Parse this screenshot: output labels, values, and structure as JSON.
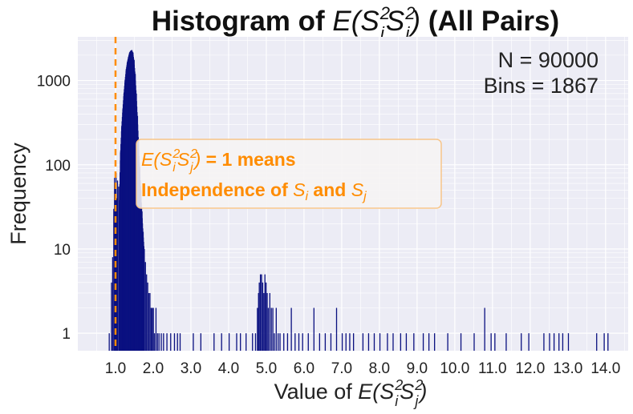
{
  "chart_data": {
    "type": "bar",
    "title_prefix": "Histogram of ",
    "title_suffix": " (All Pairs)",
    "expression": {
      "open": "E(",
      "s": "S",
      "i": "i",
      "j": "j",
      "exp": "2",
      "close": ")"
    },
    "xlabel_prefix": "Value of ",
    "ylabel": "Frequency",
    "y_scale": "log",
    "xlim": [
      0.0,
      14.6
    ],
    "ylim": [
      0.62,
      3300
    ],
    "x_ticks": [
      1.0,
      2.0,
      3.0,
      4.0,
      5.0,
      6.0,
      7.0,
      8.0,
      9.0,
      10.0,
      11.0,
      12.0,
      13.0,
      14.0
    ],
    "x_tick_labels": [
      "1.0",
      "2.0",
      "3.0",
      "4.0",
      "5.0",
      "6.0",
      "7.0",
      "8.0",
      "9.0",
      "10.0",
      "11.0",
      "12.0",
      "13.0",
      "14.0"
    ],
    "y_ticks": [
      1,
      10,
      100,
      1000
    ],
    "y_tick_labels": [
      "1",
      "10",
      "100",
      "1000"
    ],
    "grid": true,
    "bar_color": "#0a1080",
    "reference_line": {
      "x": 1.0,
      "color": "#ff8c00",
      "style": "dashed"
    },
    "annotation": {
      "line1_suffix": " = 1 means",
      "line2_prefix": "Independence of ",
      "line2_middle": " and ",
      "color": "#ff8c00"
    },
    "stats": {
      "n": "N = 90000",
      "bins": "Bins = 1867"
    },
    "peak": {
      "x": 1.42,
      "value": 2300
    },
    "bins": {
      "bin_width": 0.0075,
      "bars": [
        [
          0.82,
          1
        ],
        [
          0.88,
          4
        ],
        [
          0.91,
          8
        ],
        [
          0.94,
          30
        ],
        [
          0.96,
          70
        ],
        [
          0.97,
          45
        ],
        [
          0.99,
          60
        ],
        [
          1.0,
          80
        ],
        [
          1.02,
          40
        ],
        [
          1.04,
          65
        ],
        [
          1.07,
          55
        ],
        [
          1.09,
          38
        ],
        [
          1.12,
          140
        ],
        [
          1.15,
          280
        ],
        [
          1.18,
          450
        ],
        [
          1.21,
          700
        ],
        [
          1.24,
          1000
        ],
        [
          1.27,
          1350
        ],
        [
          1.3,
          1650
        ],
        [
          1.33,
          1900
        ],
        [
          1.36,
          2150
        ],
        [
          1.39,
          2250
        ],
        [
          1.42,
          2300
        ],
        [
          1.45,
          2150
        ],
        [
          1.48,
          1750
        ],
        [
          1.51,
          1200
        ],
        [
          1.54,
          700
        ],
        [
          1.57,
          380
        ],
        [
          1.6,
          190
        ],
        [
          1.63,
          95
        ],
        [
          1.66,
          50
        ],
        [
          1.69,
          28
        ],
        [
          1.72,
          16
        ],
        [
          1.75,
          10
        ],
        [
          1.78,
          7
        ],
        [
          1.81,
          5
        ],
        [
          1.84,
          4
        ],
        [
          1.87,
          3
        ],
        [
          1.9,
          3
        ],
        [
          1.93,
          2
        ],
        [
          1.96,
          2
        ],
        [
          1.99,
          2
        ],
        [
          2.02,
          1
        ],
        [
          2.06,
          2
        ],
        [
          2.1,
          1
        ],
        [
          2.14,
          1
        ],
        [
          2.2,
          1
        ],
        [
          2.26,
          1
        ],
        [
          2.35,
          1
        ],
        [
          2.45,
          1
        ],
        [
          2.55,
          1
        ],
        [
          2.63,
          1
        ],
        [
          2.7,
          1
        ],
        [
          3.05,
          1
        ],
        [
          3.25,
          1
        ],
        [
          3.6,
          1
        ],
        [
          3.8,
          1
        ],
        [
          4.0,
          1
        ],
        [
          4.2,
          1
        ],
        [
          4.3,
          1
        ],
        [
          4.45,
          1
        ],
        [
          4.62,
          1
        ],
        [
          4.7,
          1
        ],
        [
          4.75,
          2
        ],
        [
          4.78,
          3
        ],
        [
          4.8,
          4
        ],
        [
          4.83,
          5
        ],
        [
          4.86,
          5
        ],
        [
          4.89,
          4
        ],
        [
          4.92,
          3
        ],
        [
          4.95,
          5
        ],
        [
          4.98,
          4
        ],
        [
          5.01,
          3
        ],
        [
          5.04,
          2
        ],
        [
          5.08,
          3
        ],
        [
          5.12,
          2
        ],
        [
          5.16,
          2
        ],
        [
          5.2,
          1
        ],
        [
          5.25,
          2
        ],
        [
          5.3,
          1
        ],
        [
          5.35,
          1
        ],
        [
          5.45,
          1
        ],
        [
          5.55,
          1
        ],
        [
          5.65,
          2
        ],
        [
          5.75,
          1
        ],
        [
          5.85,
          1
        ],
        [
          5.95,
          1
        ],
        [
          6.1,
          1
        ],
        [
          6.25,
          2
        ],
        [
          6.4,
          1
        ],
        [
          6.55,
          1
        ],
        [
          6.7,
          1
        ],
        [
          6.85,
          2
        ],
        [
          7.0,
          1
        ],
        [
          7.1,
          1
        ],
        [
          7.2,
          1
        ],
        [
          7.3,
          1
        ],
        [
          7.55,
          1
        ],
        [
          7.7,
          1
        ],
        [
          7.85,
          1
        ],
        [
          8.0,
          1
        ],
        [
          8.2,
          1
        ],
        [
          8.35,
          1
        ],
        [
          8.55,
          1
        ],
        [
          8.7,
          1
        ],
        [
          8.9,
          1
        ],
        [
          9.15,
          1
        ],
        [
          9.3,
          1
        ],
        [
          9.45,
          1
        ],
        [
          9.8,
          1
        ],
        [
          10.15,
          1
        ],
        [
          10.5,
          1
        ],
        [
          10.78,
          2
        ],
        [
          10.95,
          1
        ],
        [
          11.05,
          1
        ],
        [
          11.35,
          1
        ],
        [
          11.75,
          1
        ],
        [
          11.95,
          1
        ],
        [
          12.35,
          1
        ],
        [
          12.5,
          1
        ],
        [
          12.62,
          1
        ],
        [
          12.75,
          1
        ],
        [
          12.85,
          1
        ],
        [
          13.0,
          1
        ],
        [
          13.75,
          1
        ],
        [
          13.95,
          1
        ],
        [
          14.05,
          1
        ]
      ]
    }
  }
}
